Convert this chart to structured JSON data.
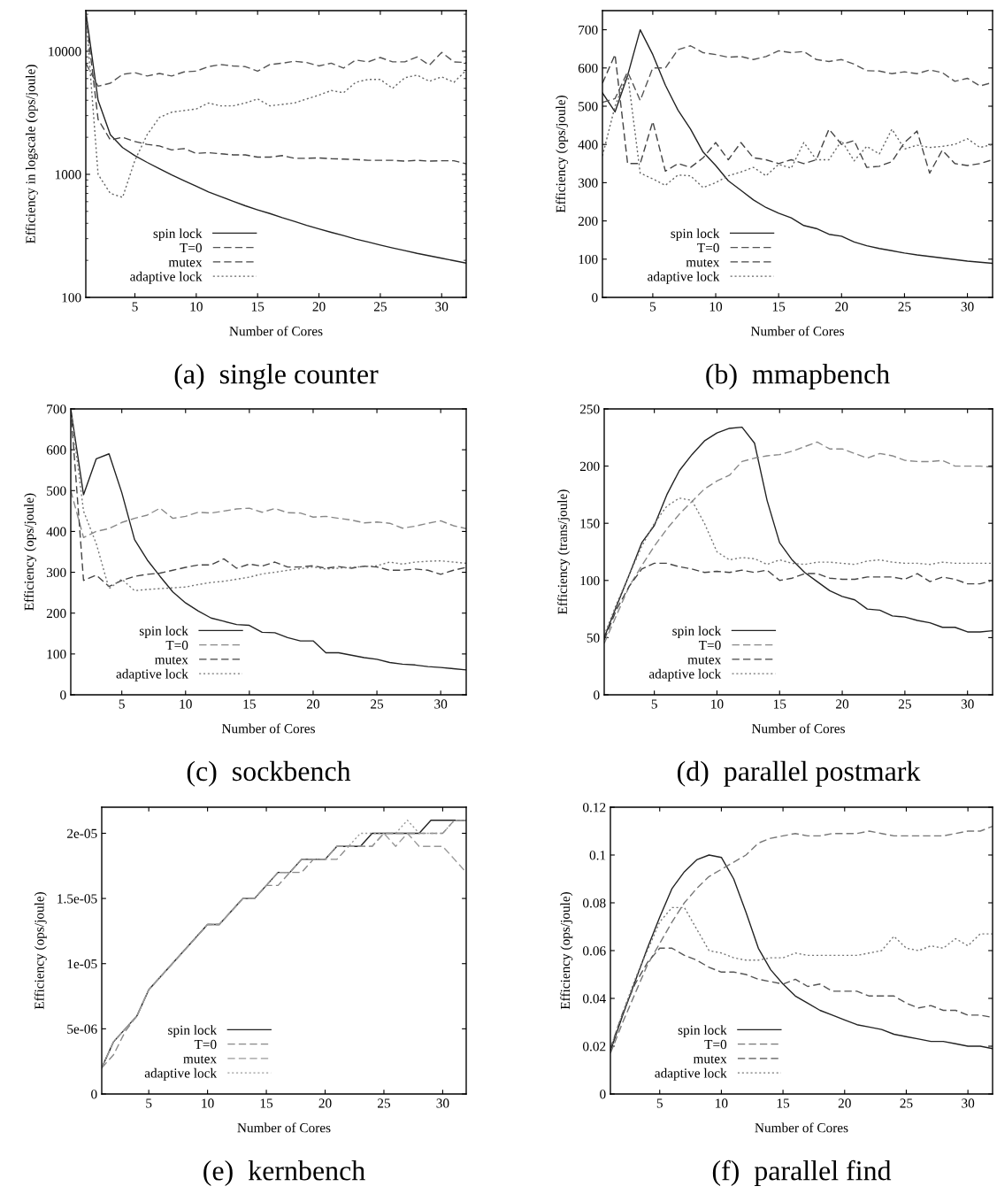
{
  "chart_data": [
    {
      "type": "line",
      "title": "(a)  single counter",
      "xlabel": "Number of Cores",
      "ylabel": "Efficiency in logscale (ops/joule)",
      "log": "y",
      "legend": "bottom left",
      "grid": false,
      "xlim": [
        1,
        32
      ],
      "xticks": [
        5,
        10,
        15,
        20,
        25,
        30
      ],
      "ylim": [
        100,
        21400
      ],
      "yticks": [
        100,
        1000,
        10000
      ],
      "x": [
        1,
        2,
        3,
        4,
        5,
        6,
        7,
        8,
        9,
        10,
        11,
        12,
        13,
        14,
        15,
        16,
        17,
        18,
        19,
        20,
        21,
        22,
        23,
        24,
        25,
        26,
        27,
        28,
        29,
        30,
        31,
        32
      ],
      "series": [
        {
          "name": "spin lock",
          "color": "#222222",
          "line_style": "solid",
          "values": [
            21000,
            4000,
            2100,
            1650,
            1420,
            1250,
            1110,
            990,
            890,
            800,
            720,
            660,
            605,
            555,
            515,
            480,
            445,
            415,
            385,
            360,
            338,
            318,
            298,
            282,
            266,
            252,
            240,
            228,
            218,
            208,
            199,
            190
          ]
        },
        {
          "name": "T=0",
          "color": "#555555",
          "line_style": "dashed",
          "values": [
            8000,
            5200,
            5500,
            6500,
            6700,
            6300,
            6600,
            6300,
            6800,
            6900,
            7500,
            7800,
            7600,
            7500,
            6900,
            7800,
            8000,
            8300,
            8100,
            7600,
            8000,
            7300,
            8500,
            8200,
            8900,
            8200,
            8200,
            9000,
            7700,
            9800,
            8200,
            8100
          ]
        },
        {
          "name": "mutex",
          "color": "#444444",
          "line_style": "dashed",
          "values": [
            20000,
            2800,
            1900,
            2000,
            1850,
            1750,
            1700,
            1580,
            1620,
            1480,
            1500,
            1470,
            1440,
            1440,
            1380,
            1380,
            1420,
            1350,
            1350,
            1360,
            1340,
            1330,
            1320,
            1300,
            1300,
            1300,
            1280,
            1300,
            1280,
            1290,
            1290,
            1220
          ]
        },
        {
          "name": "adaptive lock",
          "color": "#666666",
          "line_style": "dotted",
          "values": [
            20000,
            1000,
            700,
            650,
            1300,
            2100,
            2900,
            3200,
            3300,
            3400,
            3800,
            3600,
            3600,
            3800,
            4100,
            3600,
            3700,
            3800,
            4100,
            4400,
            4800,
            4600,
            5600,
            5900,
            5900,
            5000,
            6100,
            6400,
            5700,
            6200,
            5600,
            7000
          ]
        }
      ]
    },
    {
      "type": "line",
      "title": "(b)  mmapbench",
      "xlabel": "Number of Cores",
      "ylabel": "Efficiency (ops/joule)",
      "legend": "bottom left",
      "grid": false,
      "xlim": [
        1,
        32
      ],
      "xticks": [
        5,
        10,
        15,
        20,
        25,
        30
      ],
      "ylim": [
        0,
        750
      ],
      "yticks": [
        0,
        100,
        200,
        300,
        400,
        500,
        600,
        700
      ],
      "x": [
        1,
        2,
        3,
        4,
        5,
        6,
        7,
        8,
        9,
        10,
        11,
        12,
        13,
        14,
        15,
        16,
        17,
        18,
        19,
        20,
        21,
        22,
        23,
        24,
        25,
        26,
        27,
        28,
        29,
        30,
        31,
        32
      ],
      "series": [
        {
          "name": "spin lock",
          "color": "#222222",
          "line_style": "solid",
          "values": [
            535,
            485,
            580,
            700,
            635,
            555,
            490,
            440,
            380,
            345,
            305,
            280,
            255,
            235,
            220,
            208,
            188,
            180,
            165,
            160,
            145,
            135,
            128,
            122,
            116,
            111,
            107,
            103,
            99,
            95,
            92,
            89
          ]
        },
        {
          "name": "T=0",
          "color": "#555555",
          "line_style": "dashed",
          "values": [
            510,
            520,
            590,
            515,
            600,
            600,
            648,
            658,
            640,
            635,
            628,
            630,
            622,
            630,
            645,
            640,
            643,
            622,
            617,
            622,
            610,
            593,
            592,
            585,
            590,
            585,
            595,
            588,
            565,
            573,
            553,
            562
          ]
        },
        {
          "name": "mutex",
          "color": "#444444",
          "line_style": "dashed",
          "values": [
            560,
            635,
            350,
            350,
            460,
            330,
            350,
            340,
            365,
            405,
            360,
            405,
            365,
            360,
            350,
            360,
            350,
            360,
            440,
            400,
            410,
            340,
            343,
            355,
            405,
            435,
            325,
            385,
            350,
            345,
            350,
            360
          ]
        },
        {
          "name": "adaptive lock",
          "color": "#666666",
          "line_style": "dotted",
          "values": [
            370,
            500,
            585,
            325,
            310,
            293,
            320,
            318,
            287,
            300,
            318,
            328,
            340,
            318,
            348,
            338,
            405,
            360,
            360,
            410,
            357,
            395,
            375,
            440,
            388,
            398,
            392,
            395,
            400,
            415,
            392,
            400
          ]
        }
      ]
    },
    {
      "type": "line",
      "title": "(c)  sockbench",
      "xlabel": "Number of Cores",
      "ylabel": "Efficiency (ops/joule)",
      "legend": "bottom left",
      "grid": false,
      "xlim": [
        1,
        32
      ],
      "xticks": [
        5,
        10,
        15,
        20,
        25,
        30
      ],
      "ylim": [
        0,
        700
      ],
      "yticks": [
        0,
        100,
        200,
        300,
        400,
        500,
        600,
        700
      ],
      "x": [
        1,
        2,
        3,
        4,
        5,
        6,
        7,
        8,
        9,
        10,
        11,
        12,
        13,
        14,
        15,
        16,
        17,
        18,
        19,
        20,
        21,
        22,
        23,
        24,
        25,
        26,
        27,
        28,
        29,
        30,
        31,
        32
      ],
      "series": [
        {
          "name": "spin lock",
          "color": "#222222",
          "line_style": "solid",
          "values": [
            700,
            490,
            578,
            590,
            495,
            380,
            330,
            290,
            252,
            225,
            205,
            188,
            180,
            172,
            170,
            153,
            152,
            140,
            132,
            132,
            103,
            103,
            97,
            91,
            87,
            79,
            75,
            73,
            69,
            67,
            64,
            61
          ]
        },
        {
          "name": "T=0",
          "color": "#888888",
          "line_style": "dashed",
          "values": [
            500,
            385,
            400,
            407,
            422,
            432,
            440,
            457,
            432,
            437,
            447,
            445,
            450,
            455,
            457,
            447,
            456,
            446,
            445,
            435,
            437,
            432,
            428,
            421,
            423,
            420,
            408,
            413,
            420,
            426,
            414,
            407
          ]
        },
        {
          "name": "mutex",
          "color": "#444444",
          "line_style": "dashed",
          "values": [
            700,
            280,
            293,
            265,
            280,
            290,
            295,
            298,
            305,
            312,
            318,
            318,
            333,
            310,
            320,
            315,
            325,
            313,
            313,
            316,
            310,
            314,
            310,
            315,
            313,
            305,
            305,
            308,
            305,
            295,
            305,
            312
          ]
        },
        {
          "name": "adaptive lock",
          "color": "#777777",
          "line_style": "dotted",
          "values": [
            700,
            450,
            370,
            260,
            283,
            255,
            258,
            260,
            262,
            264,
            270,
            275,
            278,
            283,
            288,
            296,
            300,
            305,
            309,
            313,
            308,
            310,
            312,
            314,
            316,
            325,
            320,
            325,
            327,
            328,
            325,
            322
          ]
        }
      ]
    },
    {
      "type": "line",
      "title": "(d)  parallel postmark",
      "xlabel": "Number of Cores",
      "ylabel": "Efficiency (trans/joule)",
      "legend": "bottom left",
      "grid": false,
      "xlim": [
        1,
        32
      ],
      "xticks": [
        5,
        10,
        15,
        20,
        25,
        30
      ],
      "ylim": [
        0,
        250
      ],
      "yticks": [
        0,
        50,
        100,
        150,
        200,
        250
      ],
      "x": [
        1,
        2,
        3,
        4,
        5,
        6,
        7,
        8,
        9,
        10,
        11,
        12,
        13,
        14,
        15,
        16,
        17,
        18,
        19,
        20,
        21,
        22,
        23,
        24,
        25,
        26,
        27,
        28,
        29,
        30,
        31,
        32
      ],
      "series": [
        {
          "name": "spin lock",
          "color": "#222222",
          "line_style": "solid",
          "values": [
            50,
            78,
            105,
            133,
            148,
            175,
            196,
            210,
            222,
            229,
            233,
            234,
            220,
            170,
            133,
            118,
            107,
            99,
            91,
            86,
            83,
            75,
            74,
            69,
            68,
            65,
            63,
            59,
            59,
            55,
            55,
            56
          ]
        },
        {
          "name": "T=0",
          "color": "#888888",
          "line_style": "dashed",
          "values": [
            45,
            70,
            95,
            113,
            130,
            145,
            158,
            169,
            180,
            187,
            192,
            204,
            207,
            209,
            210,
            213,
            217,
            221,
            215,
            215,
            211,
            207,
            211,
            209,
            205,
            204,
            204,
            205,
            200,
            200,
            200,
            199
          ]
        },
        {
          "name": "mutex",
          "color": "#444444",
          "line_style": "dashed",
          "values": [
            48,
            75,
            95,
            110,
            115,
            115,
            112,
            110,
            107,
            108,
            107,
            109,
            107,
            109,
            100,
            102,
            106,
            106,
            102,
            101,
            101,
            103,
            103,
            103,
            101,
            106,
            99,
            103,
            101,
            97,
            97,
            100
          ]
        },
        {
          "name": "adaptive lock",
          "color": "#777777",
          "line_style": "dotted",
          "values": [
            52,
            80,
            105,
            130,
            150,
            165,
            172,
            170,
            150,
            125,
            118,
            120,
            119,
            114,
            118,
            115,
            114,
            116,
            116,
            115,
            114,
            117,
            118,
            116,
            115,
            115,
            114,
            116,
            115,
            115,
            115,
            115
          ]
        }
      ]
    },
    {
      "type": "line",
      "title": "(e)  kernbench",
      "xlabel": "Number of Cores",
      "ylabel": "Efficiency (ops/joule)",
      "legend": "bottom left",
      "grid": false,
      "xlim": [
        1,
        32
      ],
      "xticks": [
        5,
        10,
        15,
        20,
        25,
        30
      ],
      "ylim": [
        0,
        2.2e-05
      ],
      "yticks": [
        0,
        5e-06,
        1e-05,
        1.5e-05,
        2e-05
      ],
      "x": [
        1,
        2,
        3,
        4,
        5,
        6,
        7,
        8,
        9,
        10,
        11,
        12,
        13,
        14,
        15,
        16,
        17,
        18,
        19,
        20,
        21,
        22,
        23,
        24,
        25,
        26,
        27,
        28,
        29,
        30,
        31,
        32
      ],
      "series": [
        {
          "name": "spin lock",
          "color": "#222222",
          "line_style": "solid",
          "values": [
            2e-06,
            4e-06,
            5e-06,
            6e-06,
            8e-06,
            9e-06,
            1e-05,
            1.1e-05,
            1.2e-05,
            1.3e-05,
            1.3e-05,
            1.4e-05,
            1.5e-05,
            1.5e-05,
            1.6e-05,
            1.7e-05,
            1.7e-05,
            1.8e-05,
            1.8e-05,
            1.8e-05,
            1.9e-05,
            1.9e-05,
            1.9e-05,
            2e-05,
            2e-05,
            2e-05,
            2e-05,
            2e-05,
            2.1e-05,
            2.1e-05,
            2.1e-05,
            2.1e-05
          ]
        },
        {
          "name": "T=0",
          "color": "#888888",
          "line_style": "dashed",
          "values": [
            2e-06,
            3e-06,
            4.8e-06,
            6e-06,
            8e-06,
            9e-06,
            1e-05,
            1.1e-05,
            1.2e-05,
            1.3e-05,
            1.3e-05,
            1.4e-05,
            1.5e-05,
            1.5e-05,
            1.6e-05,
            1.6e-05,
            1.7e-05,
            1.7e-05,
            1.8e-05,
            1.8e-05,
            1.8e-05,
            1.9e-05,
            1.9e-05,
            1.9e-05,
            2e-05,
            2e-05,
            2e-05,
            2e-05,
            2e-05,
            2e-05,
            2.1e-05,
            2.1e-05
          ]
        },
        {
          "name": "mutex",
          "color": "#999999",
          "line_style": "dashed",
          "values": [
            2e-06,
            4e-06,
            5e-06,
            6e-06,
            8e-06,
            9e-06,
            1e-05,
            1.1e-05,
            1.2e-05,
            1.3e-05,
            1.3e-05,
            1.4e-05,
            1.5e-05,
            1.5e-05,
            1.6e-05,
            1.7e-05,
            1.7e-05,
            1.8e-05,
            1.8e-05,
            1.8e-05,
            1.9e-05,
            1.9e-05,
            1.9e-05,
            1.9e-05,
            2e-05,
            1.9e-05,
            2e-05,
            1.9e-05,
            1.9e-05,
            1.9e-05,
            1.8e-05,
            1.7e-05
          ]
        },
        {
          "name": "adaptive lock",
          "color": "#999999",
          "line_style": "dotted",
          "values": [
            2e-06,
            4e-06,
            5e-06,
            6e-06,
            8e-06,
            9e-06,
            1e-05,
            1.1e-05,
            1.2e-05,
            1.3e-05,
            1.3e-05,
            1.4e-05,
            1.5e-05,
            1.5e-05,
            1.6e-05,
            1.7e-05,
            1.7e-05,
            1.8e-05,
            1.8e-05,
            1.8e-05,
            1.9e-05,
            1.9e-05,
            2e-05,
            2e-05,
            2e-05,
            2e-05,
            2.1e-05,
            2e-05,
            2e-05,
            2e-05,
            2.1e-05,
            2.1e-05
          ]
        }
      ]
    },
    {
      "type": "line",
      "title": "(f)  parallel find",
      "xlabel": "Number of Cores",
      "ylabel": "Efficiency (ops/joule)",
      "legend": "bottom left",
      "grid": false,
      "xlim": [
        1,
        32
      ],
      "xticks": [
        5,
        10,
        15,
        20,
        25,
        30
      ],
      "ylim": [
        0,
        0.12
      ],
      "yticks": [
        0,
        0.02,
        0.04,
        0.06,
        0.08,
        0.1,
        0.12
      ],
      "x": [
        1,
        2,
        3,
        4,
        5,
        6,
        7,
        8,
        9,
        10,
        11,
        12,
        13,
        14,
        15,
        16,
        17,
        18,
        19,
        20,
        21,
        22,
        23,
        24,
        25,
        26,
        27,
        28,
        29,
        30,
        31,
        32
      ],
      "series": [
        {
          "name": "spin lock",
          "color": "#222222",
          "line_style": "solid",
          "values": [
            0.018,
            0.033,
            0.047,
            0.061,
            0.074,
            0.086,
            0.093,
            0.098,
            0.1,
            0.099,
            0.09,
            0.076,
            0.061,
            0.052,
            0.046,
            0.041,
            0.038,
            0.035,
            0.033,
            0.031,
            0.029,
            0.028,
            0.027,
            0.025,
            0.024,
            0.023,
            0.022,
            0.022,
            0.021,
            0.02,
            0.02,
            0.019
          ]
        },
        {
          "name": "T=0",
          "color": "#777777",
          "line_style": "dashed",
          "values": [
            0.017,
            0.03,
            0.042,
            0.054,
            0.063,
            0.072,
            0.08,
            0.086,
            0.091,
            0.094,
            0.097,
            0.1,
            0.105,
            0.107,
            0.108,
            0.109,
            0.108,
            0.108,
            0.109,
            0.109,
            0.109,
            0.11,
            0.109,
            0.108,
            0.108,
            0.108,
            0.108,
            0.108,
            0.109,
            0.11,
            0.11,
            0.112
          ]
        },
        {
          "name": "mutex",
          "color": "#555555",
          "line_style": "dashed",
          "values": [
            0.019,
            0.034,
            0.046,
            0.055,
            0.061,
            0.061,
            0.058,
            0.056,
            0.053,
            0.051,
            0.051,
            0.05,
            0.048,
            0.047,
            0.046,
            0.048,
            0.045,
            0.046,
            0.043,
            0.043,
            0.043,
            0.041,
            0.041,
            0.041,
            0.038,
            0.036,
            0.037,
            0.035,
            0.035,
            0.033,
            0.033,
            0.032
          ]
        },
        {
          "name": "adaptive lock",
          "color": "#777777",
          "line_style": "dotted",
          "values": [
            0.019,
            0.034,
            0.048,
            0.06,
            0.072,
            0.078,
            0.078,
            0.069,
            0.06,
            0.059,
            0.057,
            0.056,
            0.056,
            0.057,
            0.057,
            0.059,
            0.058,
            0.058,
            0.058,
            0.058,
            0.058,
            0.059,
            0.06,
            0.066,
            0.061,
            0.06,
            0.062,
            0.061,
            0.065,
            0.062,
            0.067,
            0.067
          ]
        }
      ]
    }
  ]
}
